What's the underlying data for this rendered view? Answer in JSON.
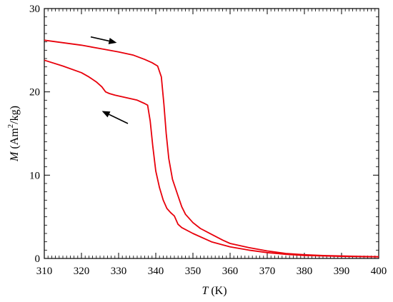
{
  "chart_data": {
    "type": "line",
    "xlabel": {
      "symbol": "T",
      "unit": " (K)"
    },
    "ylabel": {
      "symbol": "M",
      "unit_pre": " (Am",
      "unit_sup": "2",
      "unit_post": "/kg)"
    },
    "xlim": [
      310,
      400
    ],
    "ylim": [
      0,
      30
    ],
    "xticks": [
      310,
      320,
      330,
      340,
      350,
      360,
      370,
      380,
      390,
      400
    ],
    "yticks": [
      0,
      10,
      20,
      30
    ],
    "grid": false,
    "series": [
      {
        "direction": "heating",
        "color": "#e8000b",
        "x": [
          310,
          315,
          320,
          325,
          330,
          334,
          337,
          339,
          340.5,
          341.5,
          342.2,
          342.8,
          343.5,
          344.5,
          346,
          347,
          348,
          350,
          352,
          355,
          358,
          360,
          365,
          370,
          375,
          380,
          385,
          390,
          395,
          400
        ],
        "y": [
          26.2,
          25.9,
          25.6,
          25.2,
          24.8,
          24.4,
          23.9,
          23.5,
          23.1,
          21.8,
          18.5,
          15.0,
          12.0,
          9.5,
          7.5,
          6.2,
          5.3,
          4.3,
          3.6,
          2.9,
          2.2,
          1.8,
          1.3,
          0.9,
          0.6,
          0.45,
          0.35,
          0.3,
          0.25,
          0.2
        ]
      },
      {
        "direction": "cooling",
        "color": "#e8000b",
        "x": [
          310,
          315,
          320,
          322,
          324,
          325.5,
          326.5,
          327.5,
          329,
          332,
          335,
          337,
          337.8,
          338.5,
          339.2,
          340,
          341,
          342,
          343,
          344,
          345,
          346,
          347,
          350,
          355,
          360,
          365,
          370,
          375,
          380,
          390,
          400
        ],
        "y": [
          23.8,
          23.1,
          22.3,
          21.8,
          21.2,
          20.6,
          20.0,
          19.8,
          19.6,
          19.3,
          19.0,
          18.6,
          18.4,
          16.5,
          13.5,
          10.5,
          8.5,
          7.0,
          6.0,
          5.5,
          5.1,
          4.1,
          3.7,
          3.0,
          2.0,
          1.4,
          1.0,
          0.7,
          0.5,
          0.35,
          0.25,
          0.2
        ]
      }
    ],
    "arrows": [
      {
        "from": [
          322.5,
          26.6
        ],
        "to": [
          329.5,
          25.9
        ],
        "meaning": "heating"
      },
      {
        "from": [
          332.5,
          16.2
        ],
        "to": [
          325.5,
          17.7
        ],
        "meaning": "cooling"
      }
    ]
  }
}
